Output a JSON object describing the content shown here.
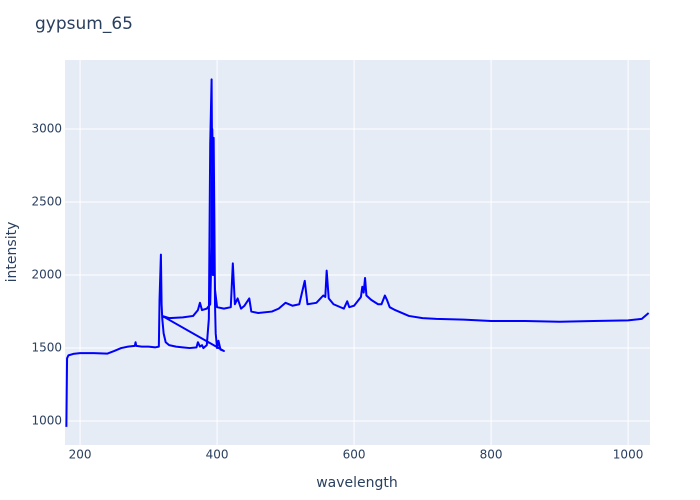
{
  "chart_data": {
    "type": "line",
    "title": "gypsum_65",
    "x_label": "wavelength",
    "y_label": "intensity",
    "x": [
      180,
      181,
      183,
      190,
      200,
      220,
      240,
      250,
      260,
      270,
      280,
      281,
      282,
      290,
      300,
      310,
      315,
      316,
      318,
      319,
      320,
      322,
      325,
      330,
      340,
      350,
      360,
      370,
      372,
      375,
      378,
      380,
      385,
      388,
      390,
      392,
      393,
      394,
      395,
      396,
      397,
      398,
      400,
      402,
      405,
      410,
      320,
      330,
      350,
      365,
      372,
      375,
      378,
      385,
      390,
      392,
      393,
      395,
      397,
      400,
      410,
      420,
      423,
      426,
      430,
      435,
      440,
      447,
      450,
      460,
      480,
      490,
      500,
      510,
      520,
      528,
      532,
      545,
      555,
      558,
      560,
      563,
      570,
      585,
      590,
      593,
      600,
      610,
      612,
      614,
      616,
      618,
      625,
      635,
      640,
      645,
      648,
      652,
      660,
      680,
      700,
      720,
      760,
      800,
      850,
      900,
      950,
      1000,
      1020,
      1030
    ],
    "series": [
      {
        "name": "intensity",
        "color": "#0000ff",
        "values": [
          960,
          1430,
          1450,
          1460,
          1465,
          1465,
          1462,
          1480,
          1500,
          1510,
          1515,
          1540,
          1515,
          1510,
          1510,
          1505,
          1510,
          1830,
          2140,
          1800,
          1700,
          1600,
          1540,
          1520,
          1510,
          1505,
          1500,
          1505,
          1540,
          1510,
          1520,
          1500,
          1520,
          1700,
          2900,
          3340,
          2600,
          2000,
          2940,
          2400,
          1800,
          1600,
          1500,
          1550,
          1490,
          1480,
          1720,
          1705,
          1710,
          1720,
          1760,
          1810,
          1760,
          1770,
          1800,
          2200,
          3000,
          2500,
          1900,
          1780,
          1770,
          1780,
          2080,
          1800,
          1840,
          1770,
          1790,
          1840,
          1750,
          1740,
          1750,
          1770,
          1810,
          1790,
          1800,
          1960,
          1800,
          1810,
          1860,
          1850,
          2030,
          1840,
          1800,
          1770,
          1820,
          1780,
          1790,
          1850,
          1920,
          1880,
          1980,
          1860,
          1830,
          1800,
          1800,
          1860,
          1830,
          1780,
          1760,
          1720,
          1705,
          1700,
          1695,
          1685,
          1685,
          1680,
          1685,
          1690,
          1700,
          1740
        ]
      }
    ],
    "xlim": [
      178,
      1032
    ],
    "ylim": [
      836,
      3473
    ],
    "xticks": [
      200,
      400,
      600,
      800,
      1000
    ],
    "yticks": [
      1000,
      1500,
      2000,
      2500,
      3000
    ],
    "grid": true
  }
}
